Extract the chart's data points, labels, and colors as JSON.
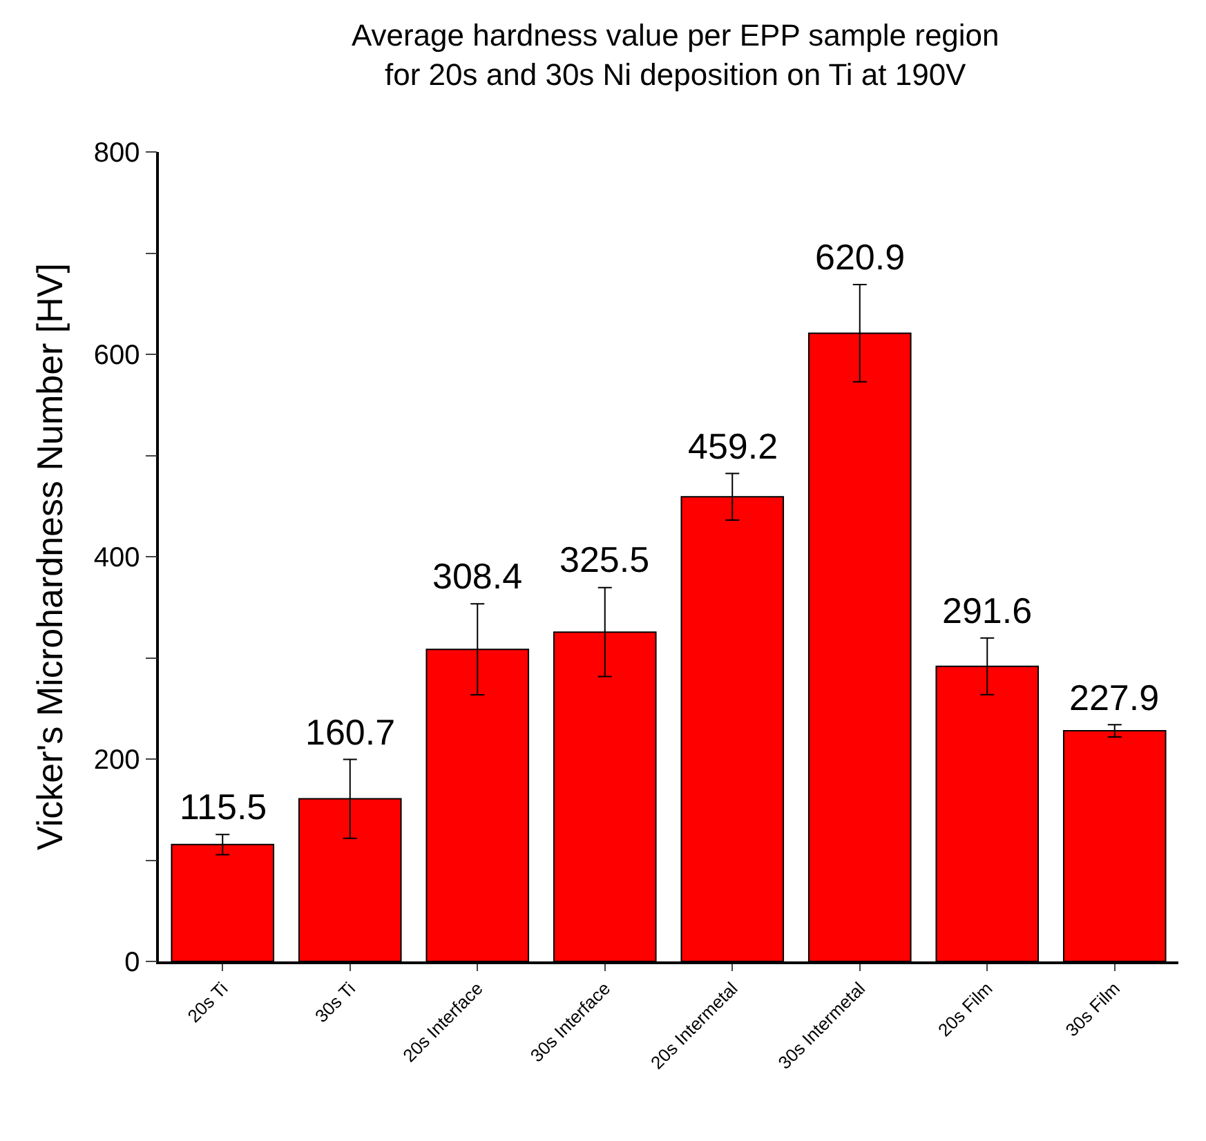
{
  "chart_data": {
    "type": "bar",
    "title": "Average hardness value per EPP sample region\nfor 20s and 30s Ni deposition on Ti at 190V",
    "ylabel": "Vicker's Microhardness Number [HV]",
    "categories": [
      "20s Ti",
      "30s Ti",
      "20s Interface",
      "30s Interface",
      "20s Intermetal",
      "30s Intermetal",
      "20s Film",
      "30s Film"
    ],
    "values": [
      115.5,
      160.7,
      308.4,
      325.5,
      459.2,
      620.9,
      291.6,
      227.9
    ],
    "errors": [
      10,
      39,
      45,
      44,
      23,
      48,
      28,
      6
    ],
    "color": "#ff0000",
    "ylim": [
      0,
      800
    ],
    "yticks": [
      0,
      {
        "value": 100,
        "label": null
      },
      200,
      {
        "value": 300,
        "label": null
      },
      400,
      {
        "value": 500,
        "label": null
      },
      600,
      {
        "value": 700,
        "label": null
      },
      800
    ],
    "data_labels": true
  }
}
